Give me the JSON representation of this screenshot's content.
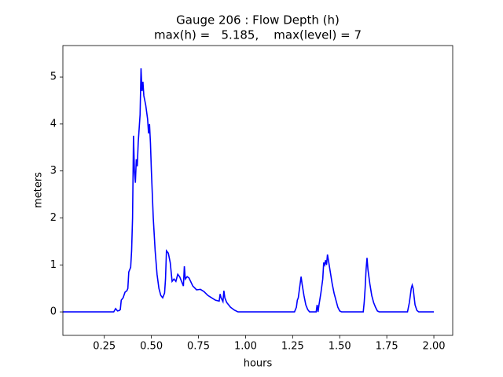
{
  "chart_data": {
    "type": "line",
    "title": "Gauge 206 : Flow Depth (h)",
    "subtitle": "max(h) =   5.185,    max(level) = 7",
    "x_label": "hours",
    "y_label": "meters",
    "xlim": [
      0.03,
      2.1
    ],
    "ylim": [
      -0.5,
      5.67
    ],
    "xticks": [
      0.25,
      {
        "value": 0.5,
        "label": "0.50"
      },
      0.75,
      {
        "value": 1,
        "label": "1.00"
      },
      1.25,
      {
        "value": 1.5,
        "label": "1.50"
      },
      1.75,
      {
        "value": 2,
        "label": "2.00"
      }
    ],
    "yticks": [
      0,
      1,
      2,
      3,
      4,
      5
    ],
    "grid": false,
    "series": [
      {
        "color": "#0000ff",
        "x": [
          0.03,
          0.3,
          0.31,
          0.32,
          0.33,
          0.335,
          0.34,
          0.35,
          0.36,
          0.37,
          0.375,
          0.38,
          0.39,
          0.395,
          0.4,
          0.405,
          0.41,
          0.415,
          0.42,
          0.425,
          0.43,
          0.44,
          0.445,
          0.45,
          0.455,
          0.46,
          0.47,
          0.48,
          0.485,
          0.49,
          0.495,
          0.5,
          0.51,
          0.52,
          0.53,
          0.54,
          0.55,
          0.56,
          0.57,
          0.575,
          0.58,
          0.59,
          0.6,
          0.61,
          0.62,
          0.63,
          0.64,
          0.65,
          0.66,
          0.67,
          0.675,
          0.68,
          0.69,
          0.7,
          0.72,
          0.74,
          0.76,
          0.78,
          0.8,
          0.82,
          0.84,
          0.86,
          0.865,
          0.87,
          0.88,
          0.885,
          0.89,
          0.9,
          0.91,
          0.92,
          0.94,
          0.96,
          1.26,
          1.27,
          1.275,
          1.28,
          1.29,
          1.295,
          1.3,
          1.31,
          1.32,
          1.33,
          1.34,
          1.375,
          1.38,
          1.385,
          1.39,
          1.4,
          1.41,
          1.415,
          1.42,
          1.425,
          1.43,
          1.435,
          1.44,
          1.45,
          1.46,
          1.47,
          1.48,
          1.49,
          1.5,
          1.51,
          1.625,
          1.63,
          1.635,
          1.64,
          1.645,
          1.65,
          1.66,
          1.67,
          1.68,
          1.69,
          1.7,
          1.71,
          1.86,
          1.87,
          1.88,
          1.885,
          1.89,
          1.9,
          1.91,
          1.92,
          2.0
        ],
        "values": [
          0,
          0,
          0.07,
          0.02,
          0.03,
          0.05,
          0.25,
          0.3,
          0.42,
          0.45,
          0.5,
          0.85,
          0.95,
          1.3,
          2.0,
          3.75,
          3.0,
          2.75,
          3.25,
          3.1,
          3.6,
          4.2,
          5.185,
          4.7,
          4.9,
          4.6,
          4.4,
          4.1,
          3.8,
          4.0,
          3.6,
          3.0,
          2.0,
          1.3,
          0.8,
          0.5,
          0.35,
          0.3,
          0.4,
          0.7,
          1.3,
          1.25,
          1.05,
          0.65,
          0.7,
          0.65,
          0.8,
          0.75,
          0.65,
          0.55,
          0.97,
          0.7,
          0.75,
          0.72,
          0.55,
          0.47,
          0.48,
          0.43,
          0.35,
          0.3,
          0.25,
          0.23,
          0.38,
          0.3,
          0.22,
          0.45,
          0.3,
          0.2,
          0.15,
          0.1,
          0.04,
          0,
          0,
          0.1,
          0.25,
          0.3,
          0.6,
          0.75,
          0.6,
          0.35,
          0.15,
          0.05,
          0,
          0,
          0.15,
          0,
          0.15,
          0.4,
          0.7,
          1.05,
          1.0,
          1.1,
          1.0,
          1.22,
          1.1,
          0.85,
          0.6,
          0.4,
          0.25,
          0.1,
          0.02,
          0,
          0,
          0.2,
          0.5,
          0.9,
          1.15,
          0.9,
          0.6,
          0.35,
          0.2,
          0.1,
          0.02,
          0,
          0,
          0.2,
          0.5,
          0.57,
          0.5,
          0.15,
          0.03,
          0,
          0
        ]
      }
    ]
  }
}
